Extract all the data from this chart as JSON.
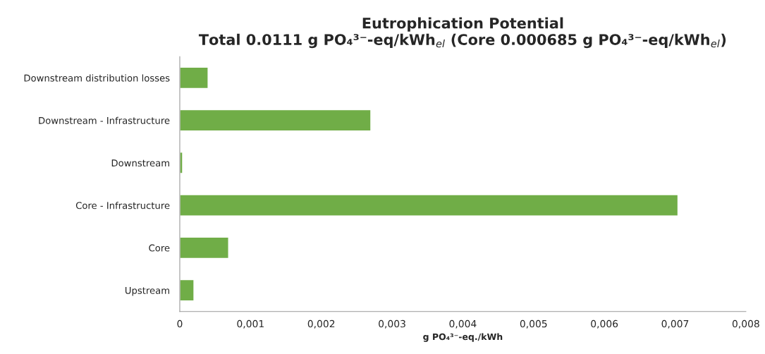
{
  "chart_data": {
    "type": "bar",
    "orientation": "horizontal",
    "title": "Eutrophication Potential\nTotal 0.0111 g PO₄³⁻-eq/kWh$_{el}$ (Core 0.000685 g PO₄³⁻-eq/kWh$_{el}$)",
    "xlabel": "g PO₄³⁻-eq./kWh",
    "categories": [
      "Downstream distribution losses",
      "Downstream - Infrastructure",
      "Downstream",
      "Core - Infrastructure",
      "Core",
      "Upstream"
    ],
    "values": [
      0.0004,
      0.0027,
      4e-05,
      0.00704,
      0.00069,
      0.0002
    ],
    "color": "#70ad47",
    "xlim": [
      0,
      0.008
    ],
    "xticks": [
      0,
      {
        "value": 0.001,
        "label": "0,001"
      },
      {
        "value": 0.002,
        "label": "0,002"
      },
      {
        "value": 0.003,
        "label": "0,003"
      },
      {
        "value": 0.004,
        "label": "0,004"
      },
      {
        "value": 0.005,
        "label": "0,005"
      },
      {
        "value": 0.006,
        "label": "0,006"
      },
      {
        "value": 0.007,
        "label": "0,007"
      },
      {
        "value": 0.008,
        "label": "0,008"
      }
    ],
    "grid": false,
    "legend": false
  }
}
